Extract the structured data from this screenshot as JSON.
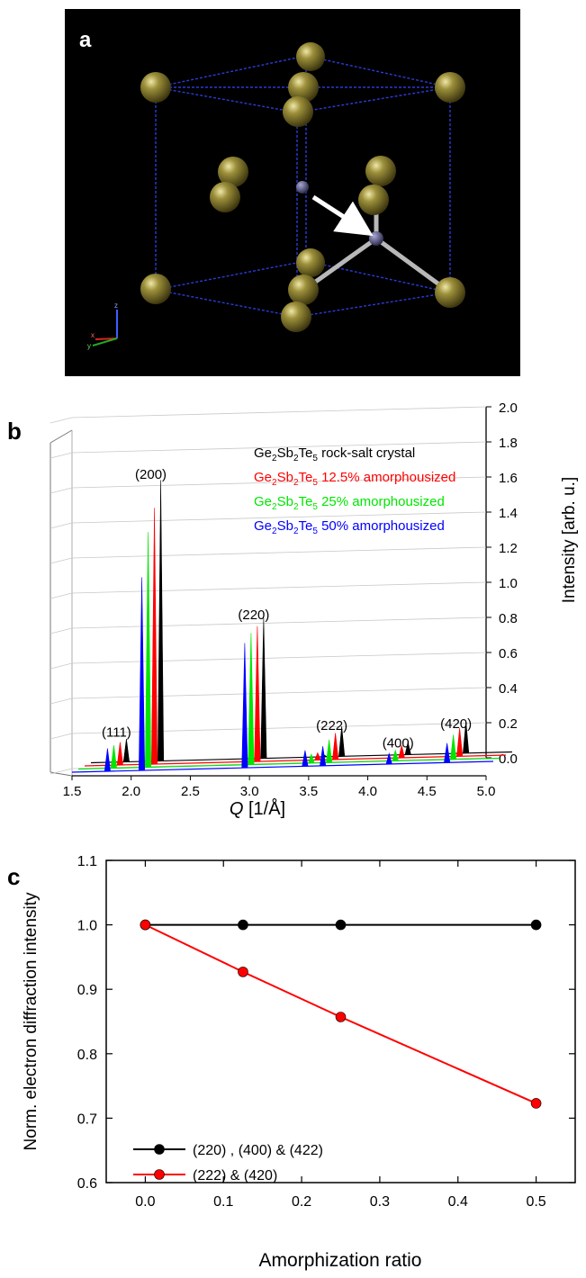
{
  "panels": {
    "a": {
      "label": "a",
      "axis_triad": {
        "z": "z",
        "x": "x",
        "y": "y"
      }
    },
    "b": {
      "label": "b"
    },
    "c": {
      "label": "c"
    }
  },
  "colors": {
    "crystal": "#000000",
    "am12": "#ff0000",
    "am25": "#00e600",
    "am50": "#0000ff",
    "sphere": "#7d7224",
    "small_atom": "#4b4a78",
    "cell_edge": "#2a3bd6",
    "bond": "#b8b8b8"
  },
  "chart_data": [
    {
      "panel": "b",
      "type": "line",
      "xlabel": "Q [1/Å]",
      "xlabel_parts": {
        "symbol": "Q",
        "unit": " [1/Å]"
      },
      "ylabel": "Intensity [arb. u.]",
      "x_ticks": [
        "1.5",
        "2.0",
        "2.5",
        "3.0",
        "3.5",
        "4.0",
        "4.5",
        "5.0"
      ],
      "xlim": [
        1.5,
        5.0
      ],
      "y_ticks": [
        "0.0",
        "0.2",
        "0.4",
        "0.6",
        "0.8",
        "1.0",
        "1.2",
        "1.4",
        "1.6",
        "1.8",
        "2.0"
      ],
      "ylim": [
        0.0,
        2.0
      ],
      "peak_labels": [
        {
          "text": "(111)",
          "q": 1.8
        },
        {
          "text": "(200)",
          "q": 2.09
        },
        {
          "text": "(220)",
          "q": 2.96
        },
        {
          "text": "(222)",
          "q": 3.62
        },
        {
          "text": "(400)",
          "q": 4.18
        },
        {
          "text": "(420)",
          "q": 4.67
        }
      ],
      "series": [
        {
          "name": "Ge2Sb2Te5 rock-salt crystal",
          "formula": [
            "Ge",
            "2",
            "Sb",
            "2",
            "Te",
            "5"
          ],
          "suffix": " rock-salt crystal",
          "color": "#000000",
          "peaks": [
            {
              "q": 1.8,
              "i": 0.12
            },
            {
              "q": 2.09,
              "i": 1.59
            },
            {
              "q": 2.96,
              "i": 0.79
            },
            {
              "q": 3.47,
              "i": 0.0
            },
            {
              "q": 3.62,
              "i": 0.16
            },
            {
              "q": 4.18,
              "i": 0.06
            },
            {
              "q": 4.67,
              "i": 0.17
            }
          ]
        },
        {
          "name": "Ge2Sb2Te5 12.5% amorphousized",
          "formula": [
            "Ge",
            "2",
            "Sb",
            "2",
            "Te",
            "5"
          ],
          "suffix": " 12.5% amorphousized",
          "color": "#ff0000",
          "peaks": [
            {
              "q": 1.8,
              "i": 0.12
            },
            {
              "q": 2.09,
              "i": 1.45
            },
            {
              "q": 2.96,
              "i": 0.76
            },
            {
              "q": 3.47,
              "i": 0.03
            },
            {
              "q": 3.62,
              "i": 0.14
            },
            {
              "q": 4.18,
              "i": 0.06
            },
            {
              "q": 4.67,
              "i": 0.15
            }
          ]
        },
        {
          "name": "Ge2Sb2Te5 25% amorphousized",
          "formula": [
            "Ge",
            "2",
            "Sb",
            "2",
            "Te",
            "5"
          ],
          "suffix": " 25% amorphousized",
          "color": "#00e600",
          "peaks": [
            {
              "q": 1.8,
              "i": 0.12
            },
            {
              "q": 2.09,
              "i": 1.33
            },
            {
              "q": 2.96,
              "i": 0.74
            },
            {
              "q": 3.47,
              "i": 0.04
            },
            {
              "q": 3.62,
              "i": 0.12
            },
            {
              "q": 4.18,
              "i": 0.05
            },
            {
              "q": 4.67,
              "i": 0.13
            }
          ]
        },
        {
          "name": "Ge2Sb2Te5 50% amorphousized",
          "formula": [
            "Ge",
            "2",
            "Sb",
            "2",
            "Te",
            "5"
          ],
          "suffix": " 50% amorphousized",
          "color": "#0000ff",
          "peaks": [
            {
              "q": 1.8,
              "i": 0.12
            },
            {
              "q": 2.09,
              "i": 1.09
            },
            {
              "q": 2.96,
              "i": 0.7
            },
            {
              "q": 3.47,
              "i": 0.08
            },
            {
              "q": 3.62,
              "i": 0.1
            },
            {
              "q": 4.18,
              "i": 0.05
            },
            {
              "q": 4.67,
              "i": 0.1
            }
          ]
        }
      ]
    },
    {
      "panel": "c",
      "type": "line",
      "xlabel": "Amorphization ratio",
      "ylabel": "Norm. electron diffraction intensity",
      "xlim": [
        -0.05,
        0.55
      ],
      "ylim": [
        0.6,
        1.1
      ],
      "x_ticks": [
        "0.0",
        "0.1",
        "0.2",
        "0.3",
        "0.4",
        "0.5"
      ],
      "y_ticks": [
        "0.6",
        "0.7",
        "0.8",
        "0.9",
        "1.0",
        "1.1"
      ],
      "legend_position": "lower-left",
      "series": [
        {
          "name": "(220) , (400) & (422)",
          "color": "#000000",
          "x": [
            0.0,
            0.125,
            0.25,
            0.5
          ],
          "y": [
            1.0,
            1.0,
            1.0,
            1.0
          ]
        },
        {
          "name": "(222) & (420)",
          "color": "#ff0000",
          "x": [
            0.0,
            0.125,
            0.25,
            0.5
          ],
          "y": [
            1.0,
            0.927,
            0.857,
            0.723
          ]
        }
      ]
    }
  ]
}
